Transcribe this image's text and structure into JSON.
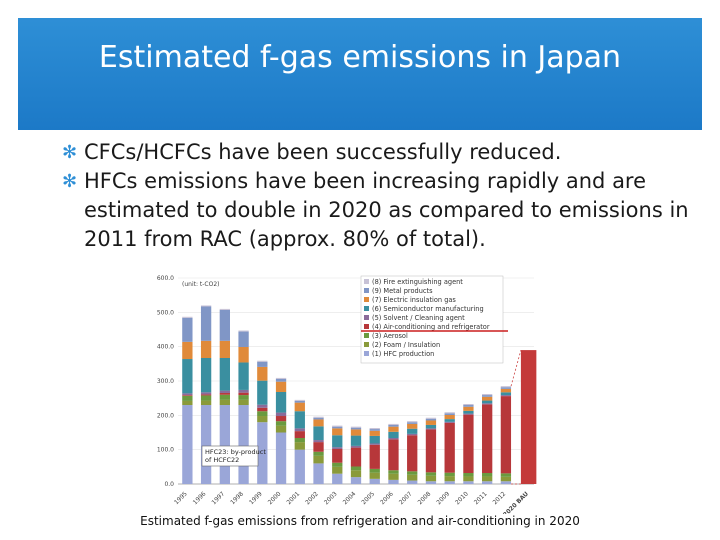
{
  "slide": {
    "title": "Estimated f-gas emissions in Japan",
    "bullets": [
      "CFCs/HCFCs have been successfully reduced.",
      "HFCs emissions have been increasing rapidly and are estimated to double in 2020 as compared to emissions in 2011 from RAC (approx. 80% of total)."
    ],
    "caption": "Estimated f-gas emissions from refrigeration and air-conditioning in 2020",
    "colors": {
      "banner": "#2372c4",
      "bullet_mark": "#2e8fd6",
      "highlight_line": "#cc1f1f",
      "projection_bar": "#c43a3a"
    }
  },
  "chart_data": {
    "type": "bar",
    "stacked": true,
    "ylabel": "(unit: t-CO2)",
    "ylim": [
      0,
      600
    ],
    "yticks": [
      0,
      100,
      200,
      300,
      400,
      500,
      600
    ],
    "categories": [
      "1995",
      "1996",
      "1997",
      "1998",
      "1999",
      "2000",
      "2001",
      "2002",
      "2003",
      "2004",
      "2005",
      "2006",
      "2007",
      "2008",
      "2009",
      "2010",
      "2011",
      "2012",
      "2020 BAU"
    ],
    "legend": [
      "(8) Fire extinguishing agent",
      "(9) Metal products",
      "(7) Electric insulation gas",
      "(6) Semiconductor manufacturing",
      "(5) Solvent / Cleaning agent",
      "(4) Air-conditioning and refrigerator",
      "(3) Aerosol",
      "(2) Foam / Insulation",
      "(1) HFC production"
    ],
    "series": [
      {
        "name": "(1) HFC production",
        "color": "#9aa6d8",
        "values": [
          230,
          230,
          230,
          230,
          180,
          150,
          100,
          60,
          30,
          20,
          15,
          12,
          10,
          8,
          8,
          8,
          8,
          8,
          0
        ]
      },
      {
        "name": "(2) Foam / Insulation",
        "color": "#8a9a3a",
        "values": [
          12,
          13,
          15,
          15,
          18,
          20,
          22,
          22,
          20,
          20,
          18,
          18,
          17,
          16,
          15,
          14,
          14,
          13,
          0
        ]
      },
      {
        "name": "(3) Aerosol",
        "color": "#6a9a3f",
        "values": [
          15,
          15,
          15,
          14,
          14,
          13,
          12,
          12,
          12,
          11,
          11,
          10,
          10,
          10,
          10,
          10,
          10,
          10,
          0
        ]
      },
      {
        "name": "(4) Air-conditioning and refrigerator",
        "color": "#b7373a",
        "values": [
          2,
          3,
          5,
          7,
          10,
          15,
          20,
          28,
          40,
          55,
          70,
          90,
          105,
          125,
          145,
          170,
          200,
          225,
          390
        ]
      },
      {
        "name": "(5) Solvent / Cleaning agent",
        "color": "#8a6b9a",
        "values": [
          5,
          6,
          7,
          8,
          9,
          10,
          8,
          6,
          5,
          5,
          4,
          4,
          4,
          3,
          3,
          3,
          3,
          3,
          0
        ]
      },
      {
        "name": "(6) Semiconductor manufacturing",
        "color": "#3a8fa0",
        "values": [
          100,
          100,
          95,
          80,
          70,
          60,
          50,
          40,
          35,
          30,
          22,
          18,
          15,
          10,
          8,
          8,
          8,
          8,
          0
        ]
      },
      {
        "name": "(7) Electric insulation gas",
        "color": "#e08a3a",
        "values": [
          50,
          50,
          50,
          45,
          40,
          30,
          25,
          20,
          20,
          18,
          15,
          15,
          14,
          13,
          12,
          12,
          11,
          10,
          0
        ]
      },
      {
        "name": "(9) Metal products",
        "color": "#8096c6",
        "values": [
          70,
          100,
          90,
          45,
          15,
          8,
          5,
          5,
          5,
          5,
          5,
          5,
          5,
          5,
          5,
          5,
          5,
          5,
          0
        ]
      },
      {
        "name": "(8) Fire extinguishing agent",
        "color": "#c7c2d6",
        "values": [
          3,
          3,
          3,
          3,
          3,
          3,
          3,
          3,
          3,
          3,
          3,
          3,
          3,
          3,
          3,
          3,
          3,
          3,
          0
        ]
      }
    ],
    "annotation": "HFC23: by-product of HCFC22"
  }
}
